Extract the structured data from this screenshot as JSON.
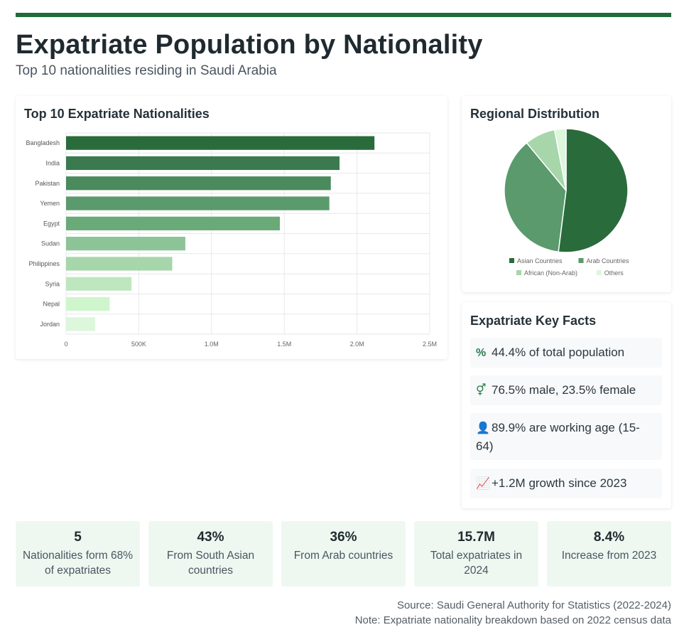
{
  "header": {
    "title": "Expatriate Population by Nationality",
    "subtitle": "Top 10 nationalities residing in Saudi Arabia"
  },
  "colors": {
    "accent": "#1f6b3a",
    "stat_bg": "#eef8f1",
    "bars": [
      "#2a6b3c",
      "#3a7a4e",
      "#4a8a5c",
      "#5a9a6c",
      "#6aaa78",
      "#8cc498",
      "#a6d6aa",
      "#bfe7bf",
      "#cff5cc",
      "#dcf7dc"
    ],
    "pie": [
      "#2a6b3c",
      "#5a9a6c",
      "#a6d6aa",
      "#dcf7dc"
    ]
  },
  "chart_data": [
    {
      "type": "bar",
      "orientation": "horizontal",
      "title": "Top 10 Expatriate Nationalities",
      "categories": [
        "Bangladesh",
        "India",
        "Pakistan",
        "Yemen",
        "Egypt",
        "Sudan",
        "Philippines",
        "Syria",
        "Nepal",
        "Jordan"
      ],
      "values": [
        2120000,
        1880000,
        1820000,
        1810000,
        1470000,
        820000,
        730000,
        450000,
        300000,
        200000
      ],
      "xlim": [
        0,
        2500000
      ],
      "x_ticks": [
        0,
        500000,
        1000000,
        1500000,
        2000000,
        2500000
      ],
      "x_tick_labels": [
        "0",
        "500K",
        "1.0M",
        "1.5M",
        "2.0M",
        "2.5M"
      ],
      "grid": true
    },
    {
      "type": "pie",
      "title": "Regional Distribution",
      "categories": [
        "Asian Countries",
        "Arab Countries",
        "African (Non-Arab)",
        "Others"
      ],
      "values": [
        52,
        37,
        8,
        3
      ],
      "legend": "bottom"
    }
  ],
  "facts": {
    "title": "Expatriate Key Facts",
    "items": [
      {
        "icon": "percent-icon",
        "glyph": "%",
        "text": "44.4% of total population"
      },
      {
        "icon": "gender-icon",
        "glyph": "⚥",
        "text": "76.5% male, 23.5% female"
      },
      {
        "icon": "worker-icon",
        "glyph": "👤",
        "text": "89.9% are working age (15-64)"
      },
      {
        "icon": "trend-chart-icon",
        "glyph": "📈",
        "text": "+1.2M growth since 2023"
      }
    ]
  },
  "stats": [
    {
      "value": "5",
      "label": "Nationalities form 68% of expatriates"
    },
    {
      "value": "43%",
      "label": "From South Asian countries"
    },
    {
      "value": "36%",
      "label": "From Arab countries"
    },
    {
      "value": "15.7M",
      "label": "Total expatriates in 2024"
    },
    {
      "value": "8.4%",
      "label": "Increase from 2023"
    }
  ],
  "footer": {
    "source": "Source: Saudi General Authority for Statistics (2022-2024)",
    "note": "Note: Expatriate nationality breakdown based on 2022 census data"
  }
}
